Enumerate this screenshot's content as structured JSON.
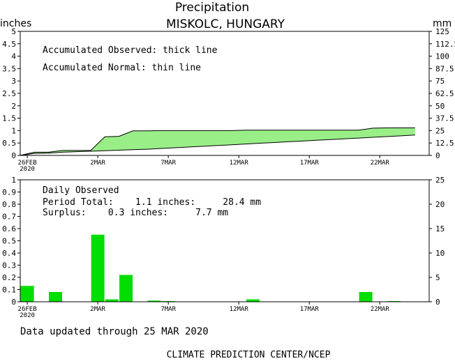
{
  "header": {
    "title": "Precipitation",
    "subtitle": "MISKOLC, HUNGARY",
    "left_unit": "inches",
    "right_unit": "mm"
  },
  "footer": {
    "updated": "Data updated through 25 MAR 2020",
    "credit": "CLIMATE PREDICTION CENTER/NCEP"
  },
  "colors": {
    "observed_fill": "#99ee88",
    "daily_bar": "#00dd00",
    "line": "#000000"
  },
  "chart_data": [
    {
      "type": "area",
      "legend": [
        "Accumulated Observed: thick line",
        "Accumulated Normal: thin line"
      ],
      "ylim": [
        0,
        5
      ],
      "y2lim": [
        0,
        125
      ],
      "yticks": [
        "0",
        "0.5",
        "1",
        "1.5",
        "2",
        "2.5",
        "3",
        "3.5",
        "4",
        "4.5",
        "5"
      ],
      "y2ticks": [
        "0",
        "12.5",
        "25",
        "37.5",
        "50",
        "62.5",
        "75",
        "87.5",
        "100",
        "112.5",
        "125"
      ],
      "xlim": [
        0,
        29
      ],
      "xticks": [
        {
          "day": 0,
          "label": "26FEB",
          "sub": "2020"
        },
        {
          "day": 5,
          "label": "2MAR",
          "sub": ""
        },
        {
          "day": 10,
          "label": "7MAR",
          "sub": ""
        },
        {
          "day": 15,
          "label": "12MAR",
          "sub": ""
        },
        {
          "day": 20,
          "label": "17MAR",
          "sub": ""
        },
        {
          "day": 25,
          "label": "22MAR",
          "sub": ""
        }
      ],
      "observed": [
        [
          0,
          0.0
        ],
        [
          1,
          0.13
        ],
        [
          2,
          0.13
        ],
        [
          3,
          0.2
        ],
        [
          4,
          0.2
        ],
        [
          5,
          0.2
        ],
        [
          6,
          0.75
        ],
        [
          7,
          0.77
        ],
        [
          8,
          0.99
        ],
        [
          9,
          0.99
        ],
        [
          10,
          1.0
        ],
        [
          11,
          1.0
        ],
        [
          12,
          1.0
        ],
        [
          13,
          1.0
        ],
        [
          14,
          1.0
        ],
        [
          15,
          1.0
        ],
        [
          16,
          1.02
        ],
        [
          17,
          1.02
        ],
        [
          18,
          1.02
        ],
        [
          19,
          1.02
        ],
        [
          20,
          1.02
        ],
        [
          21,
          1.02
        ],
        [
          22,
          1.02
        ],
        [
          23,
          1.02
        ],
        [
          24,
          1.02
        ],
        [
          25,
          1.1
        ],
        [
          26,
          1.11
        ],
        [
          27,
          1.11
        ],
        [
          28,
          1.11
        ]
      ],
      "normal": [
        [
          0,
          0.0
        ],
        [
          1,
          0.08
        ],
        [
          2,
          0.09
        ],
        [
          3,
          0.13
        ],
        [
          4,
          0.15
        ],
        [
          5,
          0.17
        ],
        [
          6,
          0.19
        ],
        [
          7,
          0.21
        ],
        [
          8,
          0.23
        ],
        [
          9,
          0.25
        ],
        [
          10,
          0.28
        ],
        [
          11,
          0.31
        ],
        [
          12,
          0.34
        ],
        [
          13,
          0.37
        ],
        [
          14,
          0.4
        ],
        [
          15,
          0.43
        ],
        [
          16,
          0.46
        ],
        [
          17,
          0.49
        ],
        [
          18,
          0.52
        ],
        [
          19,
          0.55
        ],
        [
          20,
          0.58
        ],
        [
          21,
          0.61
        ],
        [
          22,
          0.64
        ],
        [
          23,
          0.67
        ],
        [
          24,
          0.7
        ],
        [
          25,
          0.73
        ],
        [
          26,
          0.76
        ],
        [
          27,
          0.79
        ],
        [
          28,
          0.82
        ]
      ]
    },
    {
      "type": "bar",
      "legend": [
        "Daily Observed",
        "Period Total:    1.1 inches:     28.4 mm",
        "Surplus:    0.3 inches:     7.7 mm"
      ],
      "ylim": [
        0,
        1
      ],
      "y2lim": [
        0,
        25
      ],
      "yticks": [
        "0",
        "0.1",
        "0.2",
        "0.3",
        "0.4",
        "0.5",
        "0.6",
        "0.7",
        "0.8",
        "0.9",
        "1"
      ],
      "y2ticks": [
        "0",
        "5",
        "10",
        "15",
        "20",
        "25"
      ],
      "xlim": [
        0,
        29
      ],
      "xticks": [
        {
          "day": 0,
          "label": "26FEB",
          "sub": "2020"
        },
        {
          "day": 5,
          "label": "2MAR",
          "sub": ""
        },
        {
          "day": 10,
          "label": "7MAR",
          "sub": ""
        },
        {
          "day": 15,
          "label": "12MAR",
          "sub": ""
        },
        {
          "day": 20,
          "label": "17MAR",
          "sub": ""
        },
        {
          "day": 25,
          "label": "22MAR",
          "sub": ""
        }
      ],
      "bars": [
        {
          "day": 0,
          "value": 0.13
        },
        {
          "day": 2,
          "value": 0.08
        },
        {
          "day": 5,
          "value": 0.55
        },
        {
          "day": 6,
          "value": 0.02
        },
        {
          "day": 7,
          "value": 0.22
        },
        {
          "day": 9,
          "value": 0.01
        },
        {
          "day": 10,
          "value": 0.005
        },
        {
          "day": 16,
          "value": 0.02
        },
        {
          "day": 24,
          "value": 0.08
        },
        {
          "day": 26,
          "value": 0.005
        }
      ]
    }
  ]
}
